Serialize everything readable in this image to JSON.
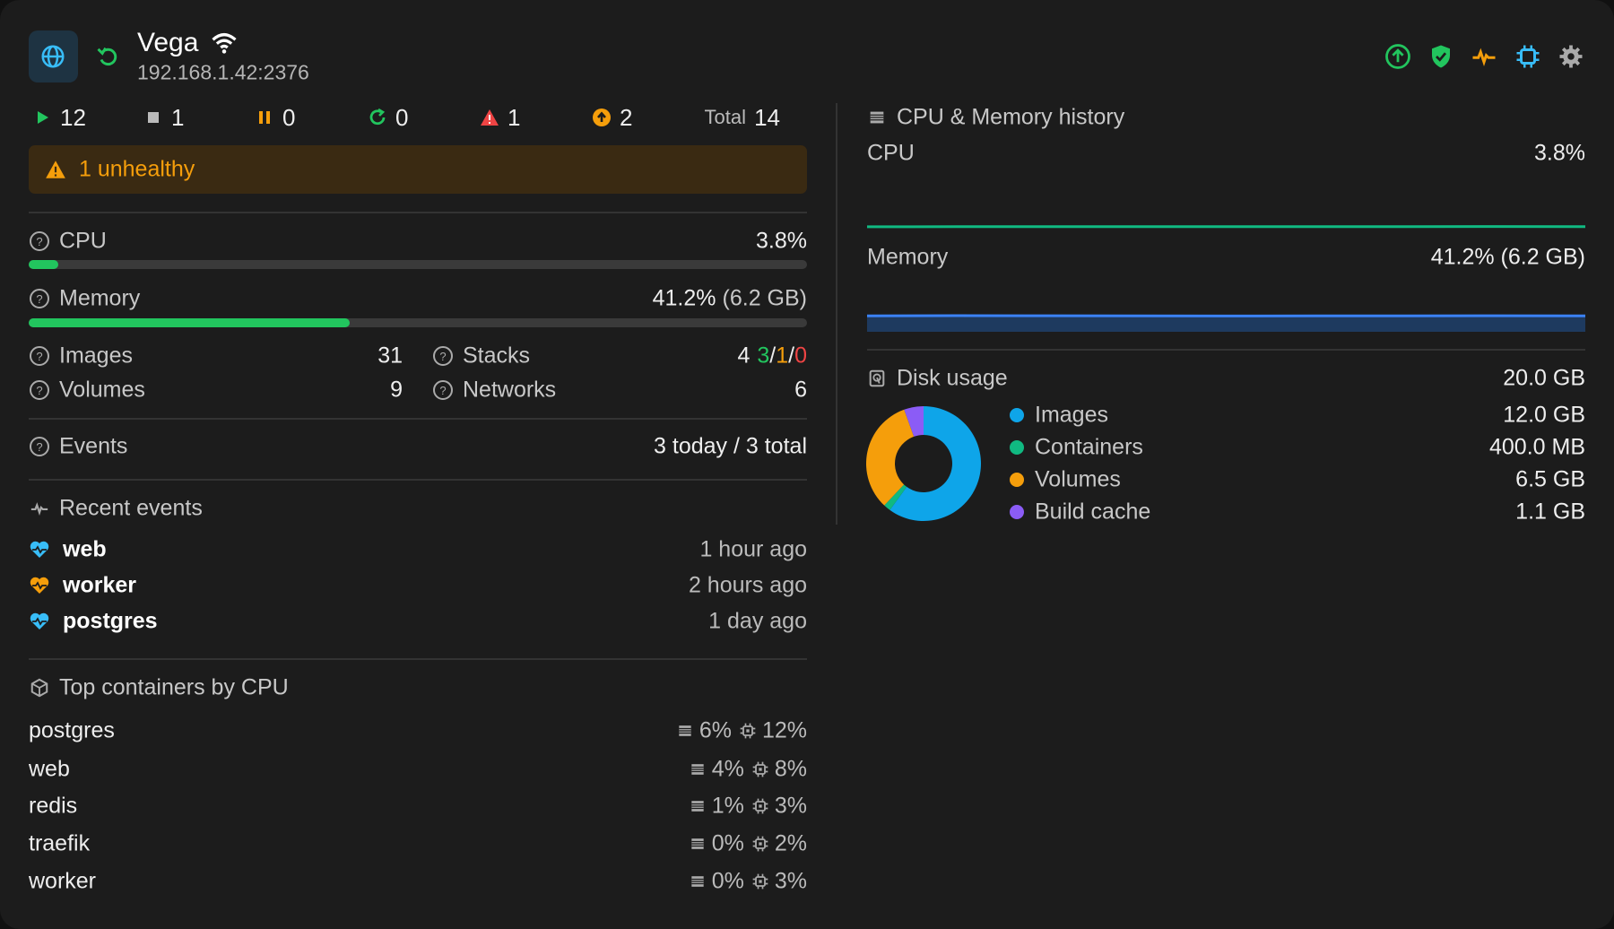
{
  "header": {
    "name": "Vega",
    "address": "192.168.1.42:2376"
  },
  "status": {
    "counts": [
      12,
      1,
      0,
      0,
      1,
      2
    ],
    "total_label": "Total",
    "total": 14
  },
  "alert": "1 unhealthy",
  "cpu": {
    "label": "CPU",
    "value": 3.8,
    "value_label": "3.8%",
    "range": [
      0,
      100
    ],
    "color": "#22c55e"
  },
  "memory": {
    "label": "Memory",
    "value": 41.2,
    "value_label": "41.2%",
    "detail": "(6.2 GB)",
    "range": [
      0,
      100
    ],
    "color": "#22c55e"
  },
  "counts": {
    "images": {
      "label": "Images",
      "value": 31
    },
    "volumes": {
      "label": "Volumes",
      "value": 9
    },
    "stacks": {
      "label": "Stacks",
      "value": 4,
      "separator": "/",
      "breakdown": [
        {
          "value": 3,
          "color": "#22c55e"
        },
        {
          "value": 1,
          "color": "#f59e0b"
        },
        {
          "value": 0,
          "color": "#ef4444"
        }
      ]
    },
    "networks": {
      "label": "Networks",
      "value": 6
    }
  },
  "events": {
    "label": "Events",
    "value": "3 today / 3 total"
  },
  "recent_events": {
    "title": "Recent events",
    "items": [
      {
        "name": "web",
        "time": "1 hour ago",
        "color": "#38bdf8"
      },
      {
        "name": "worker",
        "time": "2 hours ago",
        "color": "#f59e0b"
      },
      {
        "name": "postgres",
        "time": "1 day ago",
        "color": "#38bdf8"
      }
    ]
  },
  "top_containers": {
    "title": "Top containers by CPU",
    "rows": [
      {
        "name": "postgres",
        "mem": "6%",
        "cpu": "12%"
      },
      {
        "name": "web",
        "mem": "4%",
        "cpu": "8%"
      },
      {
        "name": "redis",
        "mem": "1%",
        "cpu": "3%"
      },
      {
        "name": "traefik",
        "mem": "0%",
        "cpu": "2%"
      },
      {
        "name": "worker",
        "mem": "0%",
        "cpu": "3%"
      }
    ]
  },
  "history": {
    "title": "CPU & Memory history",
    "ylim": [
      0,
      100
    ],
    "cpu": {
      "label": "CPU",
      "value_label": "3.8%",
      "color": "#10b981",
      "values": [
        3.5,
        3.7,
        3.9,
        3.8,
        3.6,
        3.7,
        3.9,
        4.0,
        3.8
      ]
    },
    "memory": {
      "label": "Memory",
      "value_label": "41.2% (6.2 GB)",
      "color": "#3b82f6",
      "fill": "#1e3a5f",
      "values": [
        41.5,
        41.8,
        41.6,
        41.3,
        41.0,
        41.1,
        41.4,
        41.6,
        41.2
      ]
    }
  },
  "disk": {
    "title": "Disk usage",
    "total": "20.0 GB",
    "items": [
      {
        "name": "Images",
        "value": 12.0,
        "value_label": "12.0 GB",
        "color": "#0ea5e9"
      },
      {
        "name": "Containers",
        "value": 0.4,
        "value_label": "400.0 MB",
        "color": "#10b981"
      },
      {
        "name": "Volumes",
        "value": 6.5,
        "value_label": "6.5 GB",
        "color": "#f59e0b"
      },
      {
        "name": "Build cache",
        "value": 1.1,
        "value_label": "1.1 GB",
        "color": "#8b5cf6"
      }
    ]
  }
}
